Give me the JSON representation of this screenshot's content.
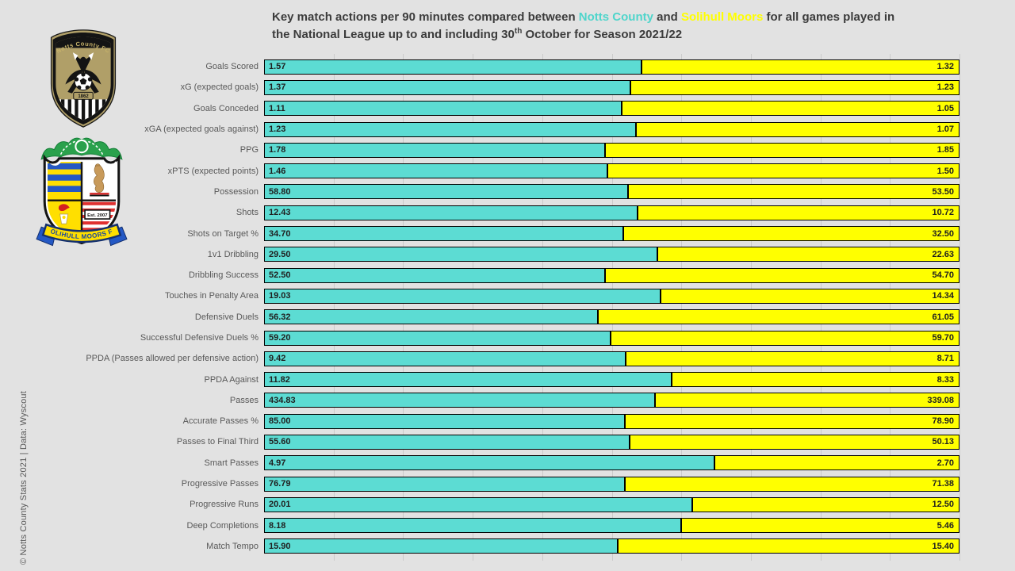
{
  "credit": "© Notts County Stats 2021 | Data: Wyscout",
  "title": {
    "segments": [
      {
        "text": "Key match actions per 90 minutes compared between ",
        "style": "normal"
      },
      {
        "text": "Notts County",
        "style": "team1"
      },
      {
        "text": " and ",
        "style": "normal"
      },
      {
        "text": "Solihull Moors",
        "style": "team2"
      },
      {
        "text": " for all games played in",
        "style": "normal"
      },
      {
        "text": "the National League up to and including 30",
        "style": "normal",
        "break_before": true
      },
      {
        "text": "th",
        "style": "sup"
      },
      {
        "text": " October for Season 2021/22",
        "style": "normal"
      }
    ]
  },
  "logos": {
    "notts_county": {
      "name": "Notts County FC",
      "year": "1862"
    },
    "solihull_moors": {
      "banner": "SOLIHULL MOORS FC",
      "est": "Est. 2007"
    }
  },
  "chart_data": {
    "type": "bar",
    "subtype": "horizontal paired bars, each row normalized so both values fill 100% of track width",
    "categories": [
      "Goals Scored",
      "xG (expected goals)",
      "Goals Conceded",
      "xGA (expected goals against)",
      "PPG",
      "xPTS (expected points)",
      "Possession",
      "Shots",
      "Shots on Target %",
      "1v1 Dribbling",
      "Dribbling Success",
      "Touches in Penalty Area",
      "Defensive Duels",
      "Successful Defensive Duels %",
      "PPDA (Passes allowed per defensive action)",
      "PPDA Against",
      "Passes",
      "Accurate Passes %",
      "Passes to Final Third",
      "Smart Passes",
      "Progressive Passes",
      "Progressive Runs",
      "Deep Completions",
      "Match Tempo"
    ],
    "series": [
      {
        "name": "Notts County",
        "color": "#5cdcd3",
        "values": [
          1.57,
          1.37,
          1.11,
          1.23,
          1.78,
          1.46,
          58.8,
          12.43,
          34.7,
          29.5,
          52.5,
          19.03,
          56.32,
          59.2,
          9.42,
          11.82,
          434.83,
          85.0,
          55.6,
          4.97,
          76.79,
          20.01,
          8.18,
          15.9
        ]
      },
      {
        "name": "Solihull Moors",
        "color": "#ffff00",
        "values": [
          1.32,
          1.23,
          1.05,
          1.07,
          1.85,
          1.5,
          53.5,
          10.72,
          32.5,
          22.63,
          54.7,
          14.34,
          61.05,
          59.7,
          8.71,
          8.33,
          339.08,
          78.9,
          50.13,
          2.7,
          71.38,
          12.5,
          5.46,
          15.4
        ]
      }
    ],
    "value_label_decimals": 2,
    "gridlines": {
      "axis": "x",
      "interval_percent": 10,
      "color": "#cbcbcb"
    },
    "legend": "none (team names colored in title)",
    "background": "#e2e2e2"
  }
}
